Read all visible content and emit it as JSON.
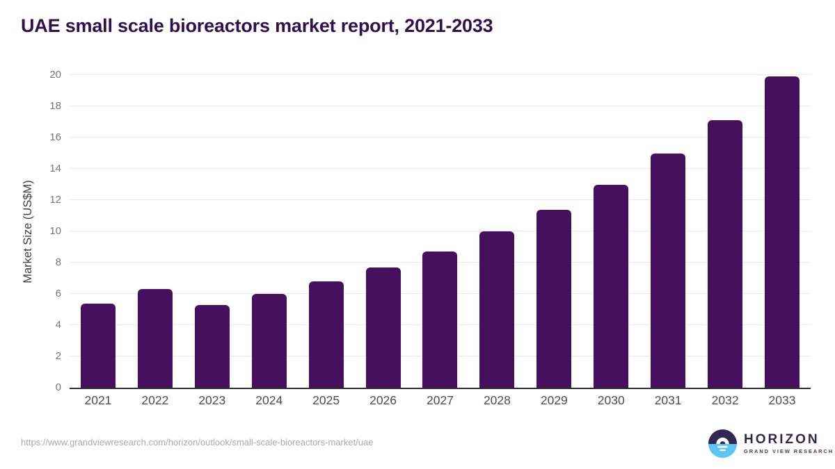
{
  "title": "UAE small scale bioreactors market report, 2021-2033",
  "chart_data": {
    "type": "bar",
    "title": "UAE small scale bioreactors market report, 2021-2033",
    "categories": [
      "2021",
      "2022",
      "2023",
      "2024",
      "2025",
      "2026",
      "2027",
      "2028",
      "2029",
      "2030",
      "2031",
      "2032",
      "2033"
    ],
    "values": [
      5.4,
      6.3,
      5.3,
      6.0,
      6.8,
      7.7,
      8.7,
      10.0,
      11.4,
      13.0,
      15.0,
      17.1,
      19.9
    ],
    "xlabel": "",
    "ylabel": "Market Size (US$M)",
    "ylim": [
      0,
      20
    ],
    "yticks": [
      0,
      2,
      4,
      6,
      8,
      10,
      12,
      14,
      16,
      18,
      20
    ],
    "grid": true,
    "legend": false,
    "bar_color": "#46105e"
  },
  "colors": {
    "bar": "#46105e",
    "title": "#31104f",
    "gridline": "#e9e9e9",
    "axis_line": "#2e2e2e",
    "y_tick_label": "#767676",
    "x_tick_label": "#4d4d4d",
    "axis_title": "#3d3d3d",
    "source_url": "#a9a9a9",
    "logo_purple": "#33274f",
    "logo_blue": "#5ec4f2"
  },
  "footer": {
    "source_url": "https://www.grandviewresearch.com/horizon/outlook/small-scale-bioreactors-market/uae",
    "logo": {
      "brand": "HORIZON",
      "sub_brand": "GRAND VIEW RESEARCH",
      "mark_icon": "sun-over-horizon-icon"
    }
  }
}
